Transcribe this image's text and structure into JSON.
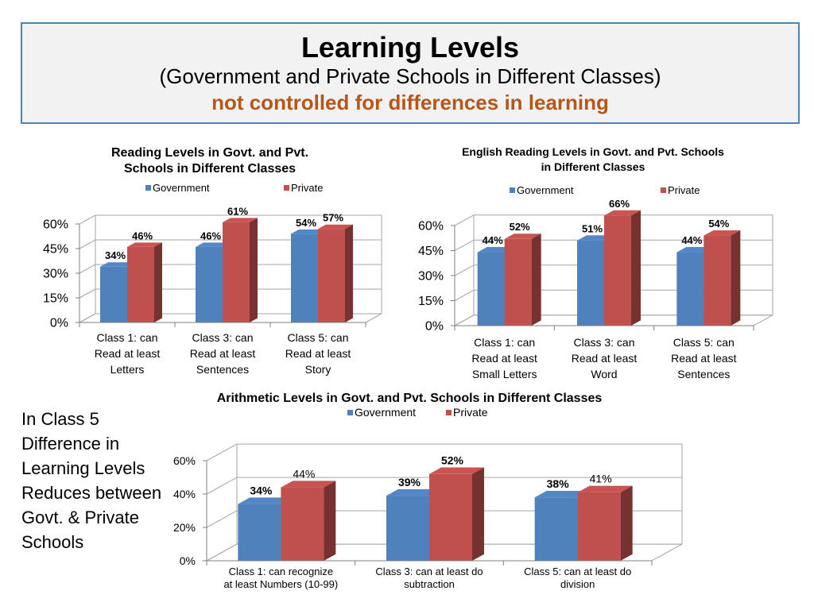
{
  "title": {
    "main": "Learning Levels",
    "sub": "(Government and Private Schools in Different Classes)",
    "note": "not controlled for differences in learning"
  },
  "side_note": "In Class 5 Difference in Learning Levels Reduces between Govt. & Private Schools",
  "colors": {
    "government": "#4f81bd",
    "private": "#c0504d"
  },
  "chart_data": [
    {
      "type": "bar",
      "title": "Reading Levels in Govt. and Pvt. Schools in Different Classes",
      "categories": [
        [
          "Class 1: can",
          "Read  at least",
          "Letters"
        ],
        [
          "Class 3: can",
          "Read  at least",
          "Sentences"
        ],
        [
          "Class 5: can",
          "Read  at least",
          "Story"
        ]
      ],
      "series": [
        {
          "name": "Government",
          "values": [
            34,
            46,
            54
          ]
        },
        {
          "name": "Private",
          "values": [
            46,
            61,
            57
          ]
        }
      ],
      "ylim": [
        0,
        60
      ],
      "yticks": [
        "0%",
        "15%",
        "30%",
        "45%",
        "60%"
      ],
      "legend": "top"
    },
    {
      "type": "bar",
      "title": "English Reading Levels in Govt. and Pvt. Schools in Different Classes",
      "categories": [
        [
          "Class 1: can",
          "Read  at least",
          "Small Letters"
        ],
        [
          "Class 3: can",
          "Read  at least",
          "Word"
        ],
        [
          "Class 5: can",
          "Read  at least",
          "Sentences"
        ]
      ],
      "series": [
        {
          "name": "Government",
          "values": [
            44,
            51,
            44
          ]
        },
        {
          "name": "Private",
          "values": [
            52,
            66,
            54
          ]
        }
      ],
      "ylim": [
        0,
        60
      ],
      "yticks": [
        "0%",
        "15%",
        "30%",
        "45%",
        "60%"
      ],
      "legend": "top"
    },
    {
      "type": "bar",
      "title": "Arithmetic Levels in Govt. and Pvt. Schools in Different Classes",
      "categories": [
        [
          "Class 1: can recognize",
          "at least Numbers (10-99)"
        ],
        [
          "Class 3: can  at least do",
          "subtraction"
        ],
        [
          "Class 5: can at least do",
          "division"
        ]
      ],
      "series": [
        {
          "name": "Government",
          "values": [
            34,
            39,
            38
          ]
        },
        {
          "name": "Private",
          "values": [
            44,
            52,
            41
          ]
        }
      ],
      "ylim": [
        0,
        60
      ],
      "yticks": [
        "0%",
        "20%",
        "40%",
        "60%"
      ],
      "legend": "top"
    }
  ]
}
